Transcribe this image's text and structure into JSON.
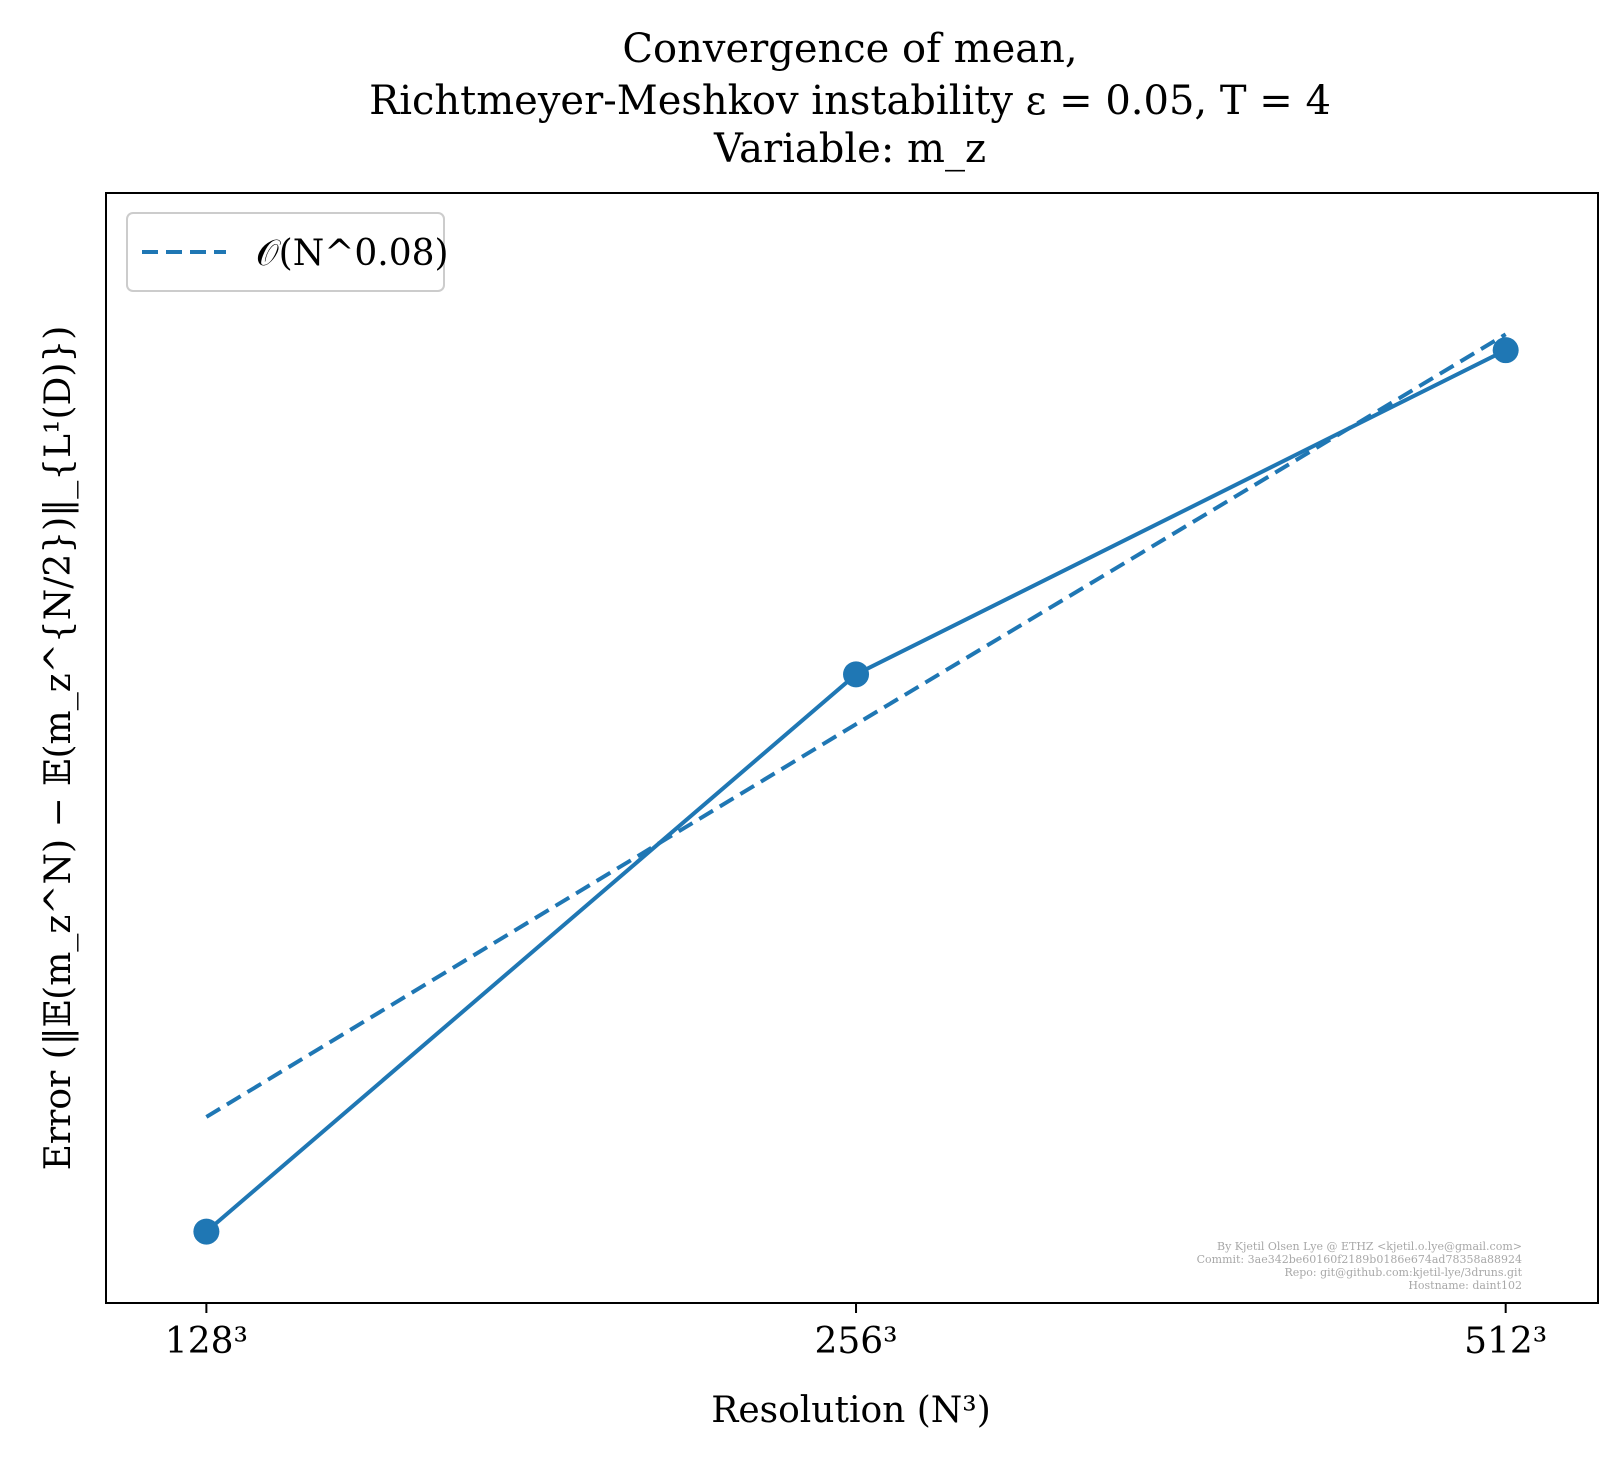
{
  "chart_data": {
    "type": "line",
    "title_lines": [
      "Convergence of mean,",
      "Richtmeyer-Meshkov instability ε = 0.05, T = 4",
      "Variable: m_z"
    ],
    "xlabel": "Resolution (N³)",
    "ylabel": "Error (‖𝔼(m_z^N) − 𝔼(m_z^{N/2})‖_{L¹(D)})",
    "x": [
      128,
      256,
      512
    ],
    "x_tick_labels": [
      "128³",
      "256³",
      "512³"
    ],
    "xscale": "log2",
    "yscale": "log",
    "xlim": [
      115,
      565
    ],
    "ylim": [
      0.872,
      1.005
    ],
    "grid": false,
    "legend_position": "top-left",
    "series": [
      {
        "style": "solid-with-markers",
        "values": [
          0.88,
          0.945,
          0.985
        ]
      },
      {
        "name": "𝒪(N^0.08)",
        "style": "dashed",
        "values": [
          0.893,
          0.939,
          0.987
        ]
      }
    ],
    "color": "#1f77b4"
  },
  "watermark_lines": [
    "By Kjetil Olsen Lye @ ETHZ <kjetil.o.lye@gmail.com>",
    "Commit: 3ae342be60160f2189b0186e674ad78358a88924",
    "Repo: git@github.com:kjetil-lye/3druns.git",
    "Hostname: daint102"
  ]
}
